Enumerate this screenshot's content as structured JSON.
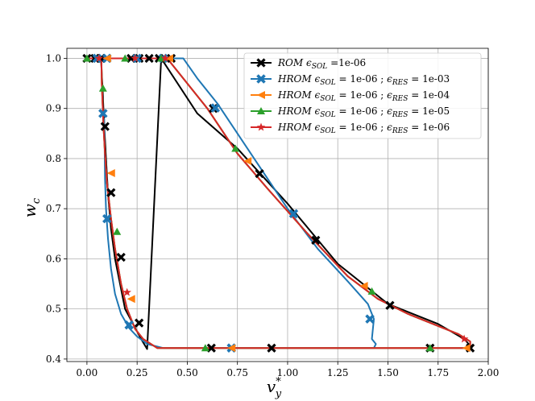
{
  "chart_data": {
    "type": "line",
    "xlabel": "v*y",
    "xlabel_main": "v",
    "xlabel_sup": "*",
    "xlabel_sub": "y",
    "ylabel": "w_c",
    "ylabel_main": "w",
    "ylabel_sub": "c",
    "xlim": [
      -0.1,
      2.0
    ],
    "ylim": [
      0.395,
      1.02
    ],
    "x_ticks": [
      0.0,
      0.25,
      0.5,
      0.75,
      1.0,
      1.25,
      1.5,
      1.75,
      2.0
    ],
    "x_tick_labels": [
      "0.00",
      "0.25",
      "0.50",
      "0.75",
      "1.00",
      "1.25",
      "1.50",
      "1.75",
      "2.00"
    ],
    "y_ticks": [
      0.4,
      0.5,
      0.6,
      0.7,
      0.8,
      0.9,
      1.0
    ],
    "y_tick_labels": [
      "0.4",
      "0.5",
      "0.6",
      "0.7",
      "0.8",
      "0.9",
      "1.0"
    ],
    "grid": true,
    "legend_position": "top-right",
    "series": [
      {
        "name": "ROM εSOL =1e-06",
        "legend_parts": [
          {
            "t": "ROM ",
            "style": "italic"
          },
          {
            "t": "ϵ",
            "style": "italic"
          },
          {
            "t": "SOL",
            "style": "sub"
          },
          {
            "t": " =1e-06",
            "style": "normal"
          }
        ],
        "color": "#000000",
        "marker": "x",
        "line_x": [
          1.92,
          1.88,
          1.75,
          1.5,
          1.25,
          1.0,
          0.75,
          0.55,
          0.37,
          0.3,
          0.27,
          0.23,
          0.19,
          0.16,
          0.14,
          0.12,
          0.105,
          0.095,
          0.087,
          0.082,
          0.078,
          0.075,
          0.072,
          0.07
        ],
        "line_y": [
          0.422,
          0.44,
          0.47,
          0.51,
          0.59,
          0.71,
          0.82,
          0.89,
          1.0,
          0.42,
          0.44,
          0.47,
          0.5,
          0.56,
          0.6,
          0.66,
          0.73,
          0.8,
          0.86,
          0.9,
          0.94,
          0.96,
          0.985,
          1.0
        ],
        "marker_x": [
          0.0,
          0.04,
          0.07,
          0.22,
          0.26,
          0.31,
          0.36,
          0.42,
          0.62,
          0.92,
          1.71,
          1.91,
          1.51,
          1.14,
          0.86,
          0.63,
          0.26,
          0.17,
          0.12,
          0.09
        ],
        "marker_y": [
          1.0,
          1.0,
          1.0,
          1.0,
          1.0,
          1.0,
          1.0,
          1.0,
          0.422,
          0.422,
          0.422,
          0.422,
          0.507,
          0.637,
          0.77,
          0.9,
          0.472,
          0.603,
          0.732,
          0.864
        ]
      },
      {
        "name": "HROM εSOL = 1e-06 ; εRES = 1e-03",
        "legend_parts": [
          {
            "t": "HROM ",
            "style": "italic"
          },
          {
            "t": "ϵ",
            "style": "italic"
          },
          {
            "t": "SOL",
            "style": "sub"
          },
          {
            "t": " = 1e-06 ; ",
            "style": "normal"
          },
          {
            "t": "ϵ",
            "style": "italic"
          },
          {
            "t": "RES",
            "style": "sub"
          },
          {
            "t": " = 1e-03",
            "style": "normal"
          }
        ],
        "color": "#1f77b4",
        "marker": "X",
        "line_x": [
          0.0,
          0.48,
          0.55,
          0.65,
          0.8,
          1.0,
          1.15,
          1.3,
          1.4,
          1.43,
          1.42,
          1.44,
          1.43,
          1.38,
          1.2,
          0.9,
          0.6,
          0.38,
          0.3,
          0.25,
          0.21,
          0.17,
          0.14,
          0.12,
          0.105,
          0.095,
          0.09,
          0.088,
          0.086
        ],
        "line_y": [
          1.0,
          1.0,
          0.96,
          0.91,
          0.82,
          0.7,
          0.62,
          0.555,
          0.51,
          0.48,
          0.44,
          0.43,
          0.422,
          0.422,
          0.422,
          0.422,
          0.422,
          0.422,
          0.43,
          0.445,
          0.462,
          0.49,
          0.53,
          0.58,
          0.64,
          0.7,
          0.76,
          0.83,
          0.88
        ],
        "marker_x": [
          0.05,
          0.1,
          0.25,
          0.38,
          0.64,
          1.03,
          1.41,
          0.72,
          0.21,
          0.1,
          0.08
        ],
        "marker_y": [
          1.0,
          1.0,
          1.0,
          1.0,
          0.901,
          0.69,
          0.48,
          0.422,
          0.468,
          0.68,
          0.89
        ]
      },
      {
        "name": "HROM εSOL = 1e-06 ; εRES = 1e-04",
        "legend_parts": [
          {
            "t": "HROM ",
            "style": "italic"
          },
          {
            "t": "ϵ",
            "style": "italic"
          },
          {
            "t": "SOL",
            "style": "sub"
          },
          {
            "t": " = 1e-06 ; ",
            "style": "normal"
          },
          {
            "t": "ϵ",
            "style": "italic"
          },
          {
            "t": "RES",
            "style": "sub"
          },
          {
            "t": " = 1e-04",
            "style": "normal"
          }
        ],
        "color": "#ff7f0e",
        "marker": "<",
        "line_x": [
          0.0,
          0.2,
          0.4,
          0.6,
          0.75,
          0.9,
          1.1,
          1.3,
          1.45,
          1.6,
          1.85,
          1.91,
          1.91,
          1.7,
          1.2,
          0.7,
          0.35,
          0.28,
          0.24,
          0.2,
          0.17,
          0.14,
          0.12,
          0.1,
          0.09,
          0.083,
          0.078,
          0.074,
          0.072
        ],
        "line_y": [
          1.0,
          1.0,
          1.0,
          0.9,
          0.81,
          0.74,
          0.65,
          0.565,
          0.52,
          0.49,
          0.45,
          0.435,
          0.422,
          0.422,
          0.422,
          0.422,
          0.422,
          0.44,
          0.46,
          0.5,
          0.55,
          0.62,
          0.68,
          0.75,
          0.81,
          0.86,
          0.91,
          0.95,
          1.0
        ],
        "marker_x": [
          0.1,
          0.41,
          0.8,
          1.38,
          1.89,
          0.72,
          0.22,
          0.12
        ],
        "marker_y": [
          1.0,
          1.0,
          0.795,
          0.546,
          0.422,
          0.422,
          0.52,
          0.771
        ]
      },
      {
        "name": "HROM εSOL = 1e-06 ; εRES = 1e-05",
        "legend_parts": [
          {
            "t": "HROM ",
            "style": "italic"
          },
          {
            "t": "ϵ",
            "style": "italic"
          },
          {
            "t": "SOL",
            "style": "sub"
          },
          {
            "t": " = 1e-06 ; ",
            "style": "normal"
          },
          {
            "t": "ϵ",
            "style": "italic"
          },
          {
            "t": "RES",
            "style": "sub"
          },
          {
            "t": " = 1e-05",
            "style": "normal"
          }
        ],
        "color": "#2ca02c",
        "marker": "^",
        "line_x": [
          0.0,
          0.2,
          0.4,
          0.6,
          0.75,
          0.9,
          1.1,
          1.3,
          1.45,
          1.6,
          1.85,
          1.91,
          1.91,
          1.7,
          1.2,
          0.7,
          0.35,
          0.28,
          0.24,
          0.2,
          0.17,
          0.14,
          0.12,
          0.1,
          0.09,
          0.083,
          0.078,
          0.074,
          0.072
        ],
        "line_y": [
          1.0,
          1.0,
          1.0,
          0.9,
          0.81,
          0.74,
          0.65,
          0.565,
          0.52,
          0.49,
          0.45,
          0.435,
          0.422,
          0.422,
          0.422,
          0.422,
          0.422,
          0.44,
          0.46,
          0.5,
          0.55,
          0.62,
          0.68,
          0.75,
          0.81,
          0.86,
          0.91,
          0.95,
          1.0
        ],
        "marker_x": [
          0.0,
          0.19,
          0.37,
          0.74,
          1.42,
          1.71,
          0.59,
          0.15,
          0.08
        ],
        "marker_y": [
          1.0,
          1.0,
          1.0,
          0.82,
          0.535,
          0.422,
          0.422,
          0.654,
          0.94
        ]
      },
      {
        "name": "HROM εSOL = 1e-06 ; εRES = 1e-06",
        "legend_parts": [
          {
            "t": "HROM ",
            "style": "italic"
          },
          {
            "t": "ϵ",
            "style": "italic"
          },
          {
            "t": "SOL",
            "style": "sub"
          },
          {
            "t": " = 1e-06 ; ",
            "style": "normal"
          },
          {
            "t": "ϵ",
            "style": "italic"
          },
          {
            "t": "RES",
            "style": "sub"
          },
          {
            "t": " = 1e-06",
            "style": "normal"
          }
        ],
        "color": "#d62728",
        "marker": "*",
        "line_x": [
          0.0,
          0.2,
          0.4,
          0.6,
          0.75,
          0.9,
          1.1,
          1.3,
          1.45,
          1.6,
          1.85,
          1.91,
          1.91,
          1.7,
          1.2,
          0.7,
          0.35,
          0.28,
          0.24,
          0.2,
          0.17,
          0.14,
          0.12,
          0.1,
          0.09,
          0.083,
          0.078,
          0.074,
          0.072
        ],
        "line_y": [
          1.0,
          1.0,
          1.0,
          0.9,
          0.81,
          0.74,
          0.65,
          0.565,
          0.52,
          0.49,
          0.45,
          0.435,
          0.422,
          0.422,
          0.422,
          0.422,
          0.422,
          0.44,
          0.46,
          0.5,
          0.55,
          0.62,
          0.68,
          0.75,
          0.81,
          0.86,
          0.91,
          0.95,
          1.0
        ],
        "marker_x": [
          0.06,
          0.24,
          0.39,
          1.88,
          0.2
        ],
        "marker_y": [
          1.0,
          1.0,
          1.0,
          0.44,
          0.533
        ]
      }
    ]
  }
}
